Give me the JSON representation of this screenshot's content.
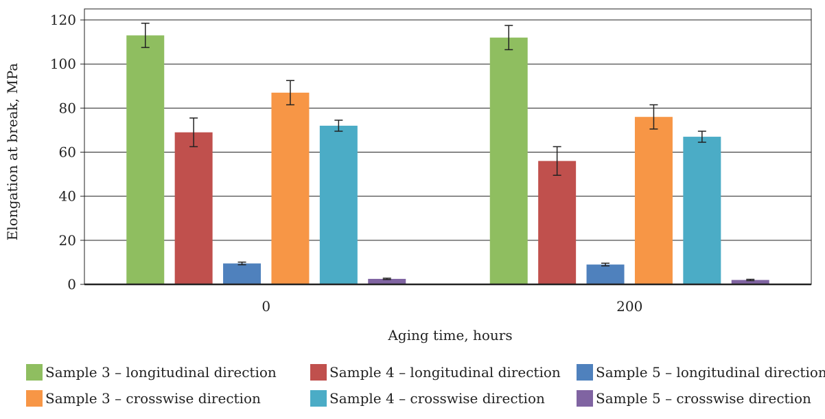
{
  "chart_data": {
    "type": "bar",
    "title": "",
    "xlabel": "Aging time, hours",
    "ylabel": "Elongation at break, MPa",
    "ylim": [
      0,
      125
    ],
    "yticks": [
      0,
      20,
      40,
      60,
      80,
      100,
      120
    ],
    "grid": true,
    "legend_position": "bottom",
    "categories": [
      "0",
      "200"
    ],
    "series": [
      {
        "name": "Sample 3 – longitudinal direction",
        "color": "#8fbe60",
        "values": [
          113,
          112
        ],
        "errors": [
          5.5,
          5.5
        ]
      },
      {
        "name": "Sample 4 – longitudinal direction",
        "color": "#c0504d",
        "values": [
          69,
          56
        ],
        "errors": [
          6.5,
          6.5
        ]
      },
      {
        "name": "Sample 5 – longitudinal direction",
        "color": "#4f81bd",
        "values": [
          9.5,
          9
        ],
        "errors": [
          0.6,
          0.6
        ]
      },
      {
        "name": "Sample 3 – crosswise direction",
        "color": "#f79646",
        "values": [
          87,
          76
        ],
        "errors": [
          5.5,
          5.5
        ]
      },
      {
        "name": "Sample 4 – crosswise direction",
        "color": "#4bacc6",
        "values": [
          72,
          67
        ],
        "errors": [
          2.5,
          2.5
        ]
      },
      {
        "name": "Sample 5 – crosswise direction",
        "color": "#8064a2",
        "values": [
          2.5,
          2
        ],
        "errors": [
          0.3,
          0.3
        ]
      }
    ]
  }
}
